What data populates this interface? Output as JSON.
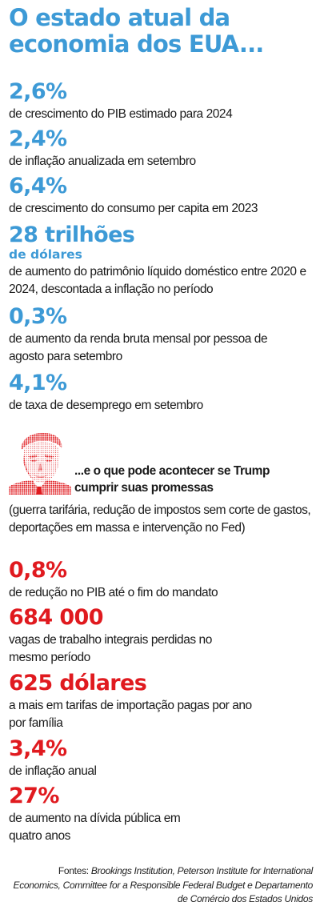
{
  "title": "O estado atual da economia dos EUA...",
  "current": [
    {
      "value": "2,6%",
      "unit": "",
      "desc": "de crescimento do PIB estimado para 2024"
    },
    {
      "value": "2,4%",
      "unit": "",
      "desc": "de inflação anualizada em setembro"
    },
    {
      "value": "6,4%",
      "unit": "",
      "desc": "de crescimento do consumo per capita em 2023"
    },
    {
      "value": "28 trilhões",
      "unit": "de dólares",
      "desc": "de aumento do patrimônio líquido doméstico entre 2020 e 2024, descontada a inflação no período"
    },
    {
      "value": "0,3%",
      "unit": "",
      "desc": "de aumento da renda bruta mensal por pessoa de agosto para setembro"
    },
    {
      "value": "4,1%",
      "unit": "",
      "desc": "de taxa de desemprego em setembro"
    }
  ],
  "trump": {
    "heading": "...e o que pode acontecer se Trump cumprir suas promessas",
    "subheading": "(guerra tarifária, redução de impostos sem corte de gastos, deportações em massa e intervenção no Fed)"
  },
  "projected": [
    {
      "value": "0,8%",
      "desc": "de redução no PIB até o fim do mandato"
    },
    {
      "value": "684 000",
      "desc": "vagas de trabalho integrais perdidas no mesmo período"
    },
    {
      "value": "625 dólares",
      "desc": "a mais em tarifas de importação pagas por ano por família"
    },
    {
      "value": "3,4%",
      "desc": "de inflação anual"
    },
    {
      "value": "27%",
      "desc": "de aumento na dívida pública em quatro anos"
    }
  ],
  "sources": {
    "label": "Fontes:",
    "text": "Brookings Institution, Peterson Institute for International Economics, Committee for a Responsible Federal Budget e Departamento de Comércio dos Estados Unidos"
  },
  "colors": {
    "blue": "#3d9ad6",
    "red": "#e01a1f",
    "text": "#1a1a1a"
  }
}
